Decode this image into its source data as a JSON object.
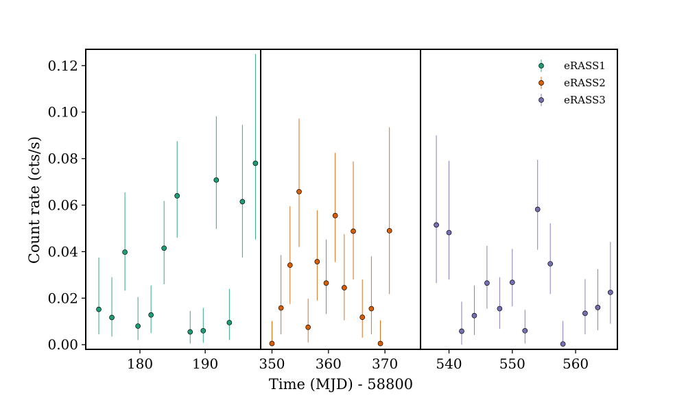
{
  "chart_data": {
    "type": "scatter",
    "subtype": "errorbar-broken-axis",
    "title": "",
    "xlabel": "Time (MJD) - 58800",
    "ylabel": "Count rate (cts/s)",
    "ylim": [
      -0.002,
      0.127
    ],
    "yticks": [
      0.0,
      0.02,
      0.04,
      0.06,
      0.08,
      0.1,
      0.12
    ],
    "ytick_labels": [
      "0.00",
      "0.02",
      "0.04",
      "0.06",
      "0.08",
      "0.10",
      "0.12"
    ],
    "legend_position": "top-right",
    "panels": [
      {
        "name": "eRASS1",
        "xlim": [
          171.7,
          198.5
        ],
        "xticks": [
          180,
          190
        ],
        "xtick_labels": [
          "180",
          "190"
        ]
      },
      {
        "name": "eRASS2",
        "xlim": [
          348.0,
          376.3
        ],
        "xticks": [
          350,
          360,
          370
        ],
        "xtick_labels": [
          "350",
          "360",
          "370"
        ]
      },
      {
        "name": "eRASS3",
        "xlim": [
          535.5,
          566.6
        ],
        "xticks": [
          540,
          550,
          560
        ],
        "xtick_labels": [
          "540",
          "550",
          "560"
        ]
      }
    ],
    "series": [
      {
        "name": "eRASS1",
        "color": "#1b9e77",
        "points": [
          {
            "x": 173.7,
            "y": 0.0152,
            "lo": 0.0045,
            "hi": 0.0375
          },
          {
            "x": 175.7,
            "y": 0.0117,
            "lo": 0.0035,
            "hi": 0.029
          },
          {
            "x": 177.7,
            "y": 0.0398,
            "lo": 0.0232,
            "hi": 0.0655
          },
          {
            "x": 179.7,
            "y": 0.008,
            "lo": 0.002,
            "hi": 0.0205
          },
          {
            "x": 181.7,
            "y": 0.0128,
            "lo": 0.005,
            "hi": 0.0255
          },
          {
            "x": 183.7,
            "y": 0.0415,
            "lo": 0.026,
            "hi": 0.0618
          },
          {
            "x": 185.7,
            "y": 0.064,
            "lo": 0.046,
            "hi": 0.0875
          },
          {
            "x": 187.7,
            "y": 0.0055,
            "lo": 0.0005,
            "hi": 0.0145
          },
          {
            "x": 189.7,
            "y": 0.006,
            "lo": 0.0008,
            "hi": 0.0158
          },
          {
            "x": 191.7,
            "y": 0.0708,
            "lo": 0.0498,
            "hi": 0.0982
          },
          {
            "x": 193.7,
            "y": 0.0095,
            "lo": 0.002,
            "hi": 0.024
          },
          {
            "x": 195.7,
            "y": 0.0615,
            "lo": 0.0375,
            "hi": 0.0945
          },
          {
            "x": 197.7,
            "y": 0.078,
            "lo": 0.0452,
            "hi": 0.125
          }
        ]
      },
      {
        "name": "eRASS2",
        "color": "#d95f02",
        "points": [
          {
            "x": 350.0,
            "y": 0.0005,
            "lo": 0.0,
            "hi": 0.0102
          },
          {
            "x": 351.6,
            "y": 0.0158,
            "lo": 0.0045,
            "hi": 0.0385
          },
          {
            "x": 353.2,
            "y": 0.0342,
            "lo": 0.0175,
            "hi": 0.0595
          },
          {
            "x": 354.8,
            "y": 0.0658,
            "lo": 0.042,
            "hi": 0.0972
          },
          {
            "x": 356.4,
            "y": 0.0075,
            "lo": 0.001,
            "hi": 0.0198
          },
          {
            "x": 358.0,
            "y": 0.0357,
            "lo": 0.019,
            "hi": 0.0578
          },
          {
            "x": 359.6,
            "y": 0.0265,
            "lo": 0.0132,
            "hi": 0.0452
          },
          {
            "x": 361.2,
            "y": 0.0555,
            "lo": 0.0355,
            "hi": 0.0825
          },
          {
            "x": 362.8,
            "y": 0.0245,
            "lo": 0.0105,
            "hi": 0.0475
          },
          {
            "x": 364.4,
            "y": 0.0488,
            "lo": 0.028,
            "hi": 0.0788
          },
          {
            "x": 366.0,
            "y": 0.0118,
            "lo": 0.003,
            "hi": 0.028
          },
          {
            "x": 367.6,
            "y": 0.0155,
            "lo": 0.0045,
            "hi": 0.038
          },
          {
            "x": 369.2,
            "y": 0.0005,
            "lo": 0.0,
            "hi": 0.0105
          },
          {
            "x": 370.8,
            "y": 0.049,
            "lo": 0.0218,
            "hi": 0.0935
          }
        ]
      },
      {
        "name": "eRASS3",
        "color": "#7570b3",
        "points": [
          {
            "x": 538.0,
            "y": 0.0515,
            "lo": 0.0265,
            "hi": 0.09
          },
          {
            "x": 540.0,
            "y": 0.0482,
            "lo": 0.028,
            "hi": 0.079
          },
          {
            "x": 542.0,
            "y": 0.0058,
            "lo": 0.0,
            "hi": 0.0185
          },
          {
            "x": 544.0,
            "y": 0.0125,
            "lo": 0.0042,
            "hi": 0.0255
          },
          {
            "x": 546.0,
            "y": 0.0265,
            "lo": 0.0155,
            "hi": 0.0425
          },
          {
            "x": 548.0,
            "y": 0.0155,
            "lo": 0.0068,
            "hi": 0.029
          },
          {
            "x": 550.0,
            "y": 0.0268,
            "lo": 0.0165,
            "hi": 0.0412
          },
          {
            "x": 552.0,
            "y": 0.006,
            "lo": 0.0005,
            "hi": 0.015
          },
          {
            "x": 554.0,
            "y": 0.0582,
            "lo": 0.0408,
            "hi": 0.0795
          },
          {
            "x": 556.0,
            "y": 0.0348,
            "lo": 0.0218,
            "hi": 0.0522
          },
          {
            "x": 558.0,
            "y": 0.0003,
            "lo": 0.0,
            "hi": 0.0102
          },
          {
            "x": 561.5,
            "y": 0.0135,
            "lo": 0.0045,
            "hi": 0.0282
          },
          {
            "x": 563.5,
            "y": 0.016,
            "lo": 0.0062,
            "hi": 0.0325
          },
          {
            "x": 565.5,
            "y": 0.0225,
            "lo": 0.009,
            "hi": 0.0442
          }
        ]
      }
    ]
  }
}
